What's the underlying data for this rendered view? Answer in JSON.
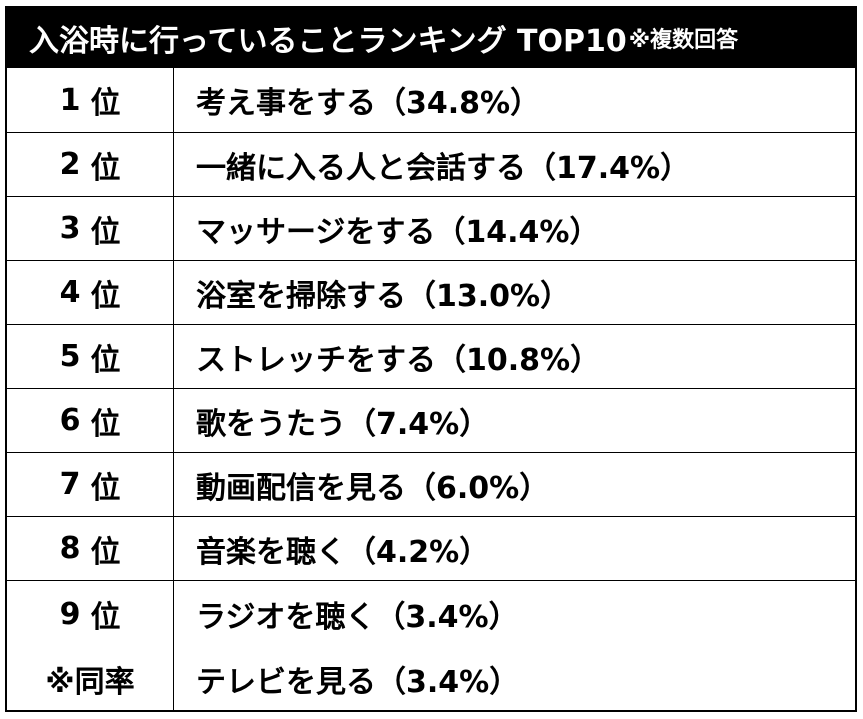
{
  "title": "入浴時に行っていることランキング TOP10",
  "title_note": "※複数回答",
  "chart_data": {
    "type": "table",
    "title": "入浴時に行っていることランキング TOP10",
    "note": "※複数回答",
    "rows": [
      {
        "rank": "1",
        "rank_suffix": "位",
        "label": "考え事をする",
        "value": 34.8,
        "text": "考え事をする（34.8%）"
      },
      {
        "rank": "2",
        "rank_suffix": "位",
        "label": "一緒に入る人と会話する",
        "value": 17.4,
        "text": "一緒に入る人と会話する（17.4%）"
      },
      {
        "rank": "3",
        "rank_suffix": "位",
        "label": "マッサージをする",
        "value": 14.4,
        "text": "マッサージをする（14.4%）"
      },
      {
        "rank": "4",
        "rank_suffix": "位",
        "label": "浴室を掃除する",
        "value": 13.0,
        "text": "浴室を掃除する（13.0%）"
      },
      {
        "rank": "5",
        "rank_suffix": "位",
        "label": "ストレッチをする",
        "value": 10.8,
        "text": "ストレッチをする（10.8%）"
      },
      {
        "rank": "6",
        "rank_suffix": "位",
        "label": "歌をうたう",
        "value": 7.4,
        "text": "歌をうたう（7.4%）"
      },
      {
        "rank": "7",
        "rank_suffix": "位",
        "label": "動画配信を見る",
        "value": 6.0,
        "text": "動画配信を見る（6.0%）"
      },
      {
        "rank": "8",
        "rank_suffix": "位",
        "label": "音楽を聴く",
        "value": 4.2,
        "text": "音楽を聴く（4.2%）"
      },
      {
        "rank": "9",
        "rank_suffix": "位",
        "label": "ラジオを聴く",
        "value": 3.4,
        "text": "ラジオを聴く（3.4%）"
      },
      {
        "rank": "",
        "rank_suffix": "※同率",
        "label": "テレビを見る",
        "value": 3.4,
        "text": "テレビを見る（3.4%）"
      }
    ]
  }
}
